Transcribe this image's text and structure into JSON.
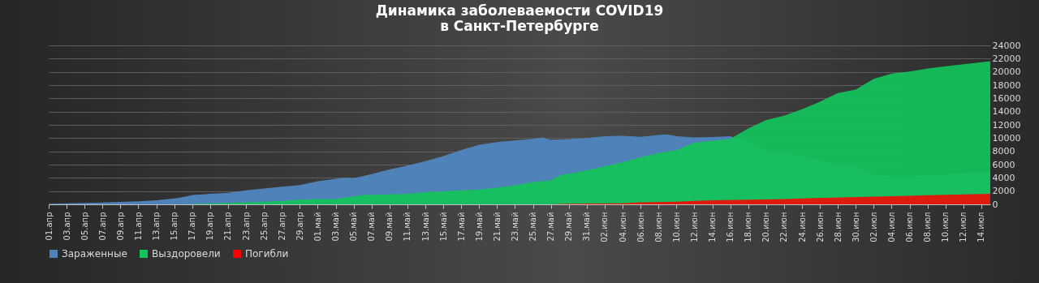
{
  "chart_data": {
    "type": "area",
    "title": "Динамика заболеваемости  COVID19\nв Санкт-Петербурге",
    "legend": "bottom",
    "grid": "y",
    "xlim": [
      "--04-01",
      "--07-15"
    ],
    "ylim": [
      0,
      24000
    ],
    "yticks": [
      0,
      2000,
      4000,
      6000,
      8000,
      10000,
      12000,
      14000,
      16000,
      18000,
      20000,
      22000,
      24000
    ],
    "xticks": [
      {
        "value": "--04-01",
        "label": "01.апр"
      },
      {
        "value": "--04-03",
        "label": "03.апр"
      },
      {
        "value": "--04-05",
        "label": "05.апр"
      },
      {
        "value": "--04-07",
        "label": "07.апр"
      },
      {
        "value": "--04-09",
        "label": "09.апр"
      },
      {
        "value": "--04-11",
        "label": "11.апр"
      },
      {
        "value": "--04-13",
        "label": "13.апр"
      },
      {
        "value": "--04-15",
        "label": "15.апр"
      },
      {
        "value": "--04-17",
        "label": "17.апр"
      },
      {
        "value": "--04-19",
        "label": "19.апр"
      },
      {
        "value": "--04-21",
        "label": "21.апр"
      },
      {
        "value": "--04-23",
        "label": "23.апр"
      },
      {
        "value": "--04-25",
        "label": "25.апр"
      },
      {
        "value": "--04-27",
        "label": "27.апр"
      },
      {
        "value": "--04-29",
        "label": "29.апр"
      },
      {
        "value": "--05-01",
        "label": "01.май"
      },
      {
        "value": "--05-03",
        "label": "03.май"
      },
      {
        "value": "--05-05",
        "label": "05.май"
      },
      {
        "value": "--05-07",
        "label": "07.май"
      },
      {
        "value": "--05-09",
        "label": "09.май"
      },
      {
        "value": "--05-11",
        "label": "11.май"
      },
      {
        "value": "--05-13",
        "label": "13.май"
      },
      {
        "value": "--05-15",
        "label": "15.май"
      },
      {
        "value": "--05-17",
        "label": "17.май"
      },
      {
        "value": "--05-19",
        "label": "19.май"
      },
      {
        "value": "--05-21",
        "label": "21.май"
      },
      {
        "value": "--05-23",
        "label": "23.май"
      },
      {
        "value": "--05-25",
        "label": "25.май"
      },
      {
        "value": "--05-27",
        "label": "27.май"
      },
      {
        "value": "--05-29",
        "label": "29.май"
      },
      {
        "value": "--05-31",
        "label": "31.май"
      },
      {
        "value": "--06-02",
        "label": "02.июн"
      },
      {
        "value": "--06-04",
        "label": "04.июн"
      },
      {
        "value": "--06-06",
        "label": "06.июн"
      },
      {
        "value": "--06-08",
        "label": "08.июн"
      },
      {
        "value": "--06-10",
        "label": "10.июн"
      },
      {
        "value": "--06-12",
        "label": "12.июн"
      },
      {
        "value": "--06-14",
        "label": "14.июн"
      },
      {
        "value": "--06-16",
        "label": "16.июн"
      },
      {
        "value": "--06-18",
        "label": "18.июн"
      },
      {
        "value": "--06-20",
        "label": "20.июн"
      },
      {
        "value": "--06-22",
        "label": "22.июн"
      },
      {
        "value": "--06-24",
        "label": "24.июн"
      },
      {
        "value": "--06-26",
        "label": "26.июн"
      },
      {
        "value": "--06-28",
        "label": "28.июн"
      },
      {
        "value": "--06-30",
        "label": "30.июн"
      },
      {
        "value": "--07-02",
        "label": "02.июл"
      },
      {
        "value": "--07-04",
        "label": "04.июл"
      },
      {
        "value": "--07-06",
        "label": "06.июл"
      },
      {
        "value": "--07-08",
        "label": "08.июл"
      },
      {
        "value": "--07-10",
        "label": "10.июл"
      },
      {
        "value": "--07-12",
        "label": "12.июл"
      },
      {
        "value": "--07-14",
        "label": "14.июл"
      }
    ],
    "series": [
      {
        "name": "Зараженные",
        "color": "#4f82b8",
        "x": [
          "--04-01",
          "--04-03",
          "--04-05",
          "--04-07",
          "--04-09",
          "--04-11",
          "--04-13",
          "--04-15",
          "--04-16",
          "--04-17",
          "--04-19",
          "--04-21",
          "--04-23",
          "--04-25",
          "--04-27",
          "--04-29",
          "--05-01",
          "--05-03",
          "--05-04",
          "--05-05",
          "--05-07",
          "--05-09",
          "--05-11",
          "--05-13",
          "--05-15",
          "--05-17",
          "--05-19",
          "--05-21",
          "--05-23",
          "--05-25",
          "--05-26",
          "--05-27",
          "--05-29",
          "--05-31",
          "--06-02",
          "--06-04",
          "--06-06",
          "--06-08",
          "--06-09",
          "--06-10",
          "--06-12",
          "--06-14",
          "--06-16",
          "--06-18",
          "--06-20",
          "--06-21",
          "--06-22",
          "--06-24",
          "--06-26",
          "--06-28",
          "--06-30",
          "--07-02",
          "--07-04",
          "--07-06",
          "--07-08",
          "--07-10",
          "--07-12",
          "--07-14",
          "--07-15"
        ],
        "values": [
          100,
          150,
          200,
          280,
          370,
          450,
          600,
          900,
          1100,
          1400,
          1600,
          1750,
          2100,
          2400,
          2650,
          2900,
          3500,
          3850,
          4050,
          3950,
          4550,
          5270,
          5840,
          6530,
          7300,
          8200,
          9000,
          9400,
          9650,
          9900,
          10100,
          9740,
          9860,
          10000,
          10300,
          10350,
          10200,
          10460,
          10550,
          10300,
          10100,
          10150,
          10300,
          9550,
          8200,
          7870,
          7870,
          7260,
          6780,
          5840,
          5800,
          4420,
          4260,
          4260,
          4380,
          4540,
          4710,
          4830,
          4870
        ]
      },
      {
        "name": "Выздоровели",
        "color": "#12c45a",
        "x": [
          "--04-01",
          "--04-15",
          "--04-17",
          "--04-21",
          "--04-25",
          "--04-27",
          "--04-29",
          "--05-01",
          "--05-03",
          "--05-04",
          "--05-05",
          "--05-06",
          "--05-07",
          "--05-09",
          "--05-11",
          "--05-13",
          "--05-15",
          "--05-17",
          "--05-19",
          "--05-21",
          "--05-23",
          "--05-25",
          "--05-27",
          "--05-28",
          "--05-29",
          "--05-31",
          "--06-02",
          "--06-04",
          "--06-06",
          "--06-08",
          "--06-10",
          "--06-12",
          "--06-14",
          "--06-16",
          "--06-18",
          "--06-20",
          "--06-22",
          "--06-24",
          "--06-26",
          "--06-28",
          "--06-30",
          "--07-02",
          "--07-04",
          "--07-06",
          "--07-08",
          "--07-10",
          "--07-12",
          "--07-14",
          "--07-15"
        ],
        "values": [
          0,
          0,
          40,
          200,
          400,
          530,
          700,
          800,
          800,
          1050,
          1200,
          1400,
          1450,
          1500,
          1580,
          1830,
          1950,
          2100,
          2230,
          2500,
          2880,
          3370,
          3600,
          4420,
          4620,
          5150,
          5720,
          6370,
          7100,
          7750,
          8200,
          9300,
          9620,
          9900,
          11440,
          12740,
          13390,
          14360,
          15500,
          16800,
          17330,
          18950,
          19760,
          20050,
          20500,
          20860,
          21150,
          21470,
          21620
        ]
      },
      {
        "name": "Погибли",
        "color": "#ff0000",
        "x": [
          "--04-01",
          "--05-27",
          "--05-29",
          "--05-31",
          "--06-04",
          "--06-06",
          "--06-10",
          "--06-12",
          "--06-14",
          "--06-18",
          "--06-22",
          "--06-26",
          "--06-30",
          "--07-04",
          "--07-08",
          "--07-12",
          "--07-15"
        ],
        "values": [
          0,
          0,
          100,
          120,
          160,
          320,
          400,
          530,
          610,
          690,
          810,
          970,
          1090,
          1220,
          1380,
          1500,
          1580
        ]
      }
    ]
  }
}
